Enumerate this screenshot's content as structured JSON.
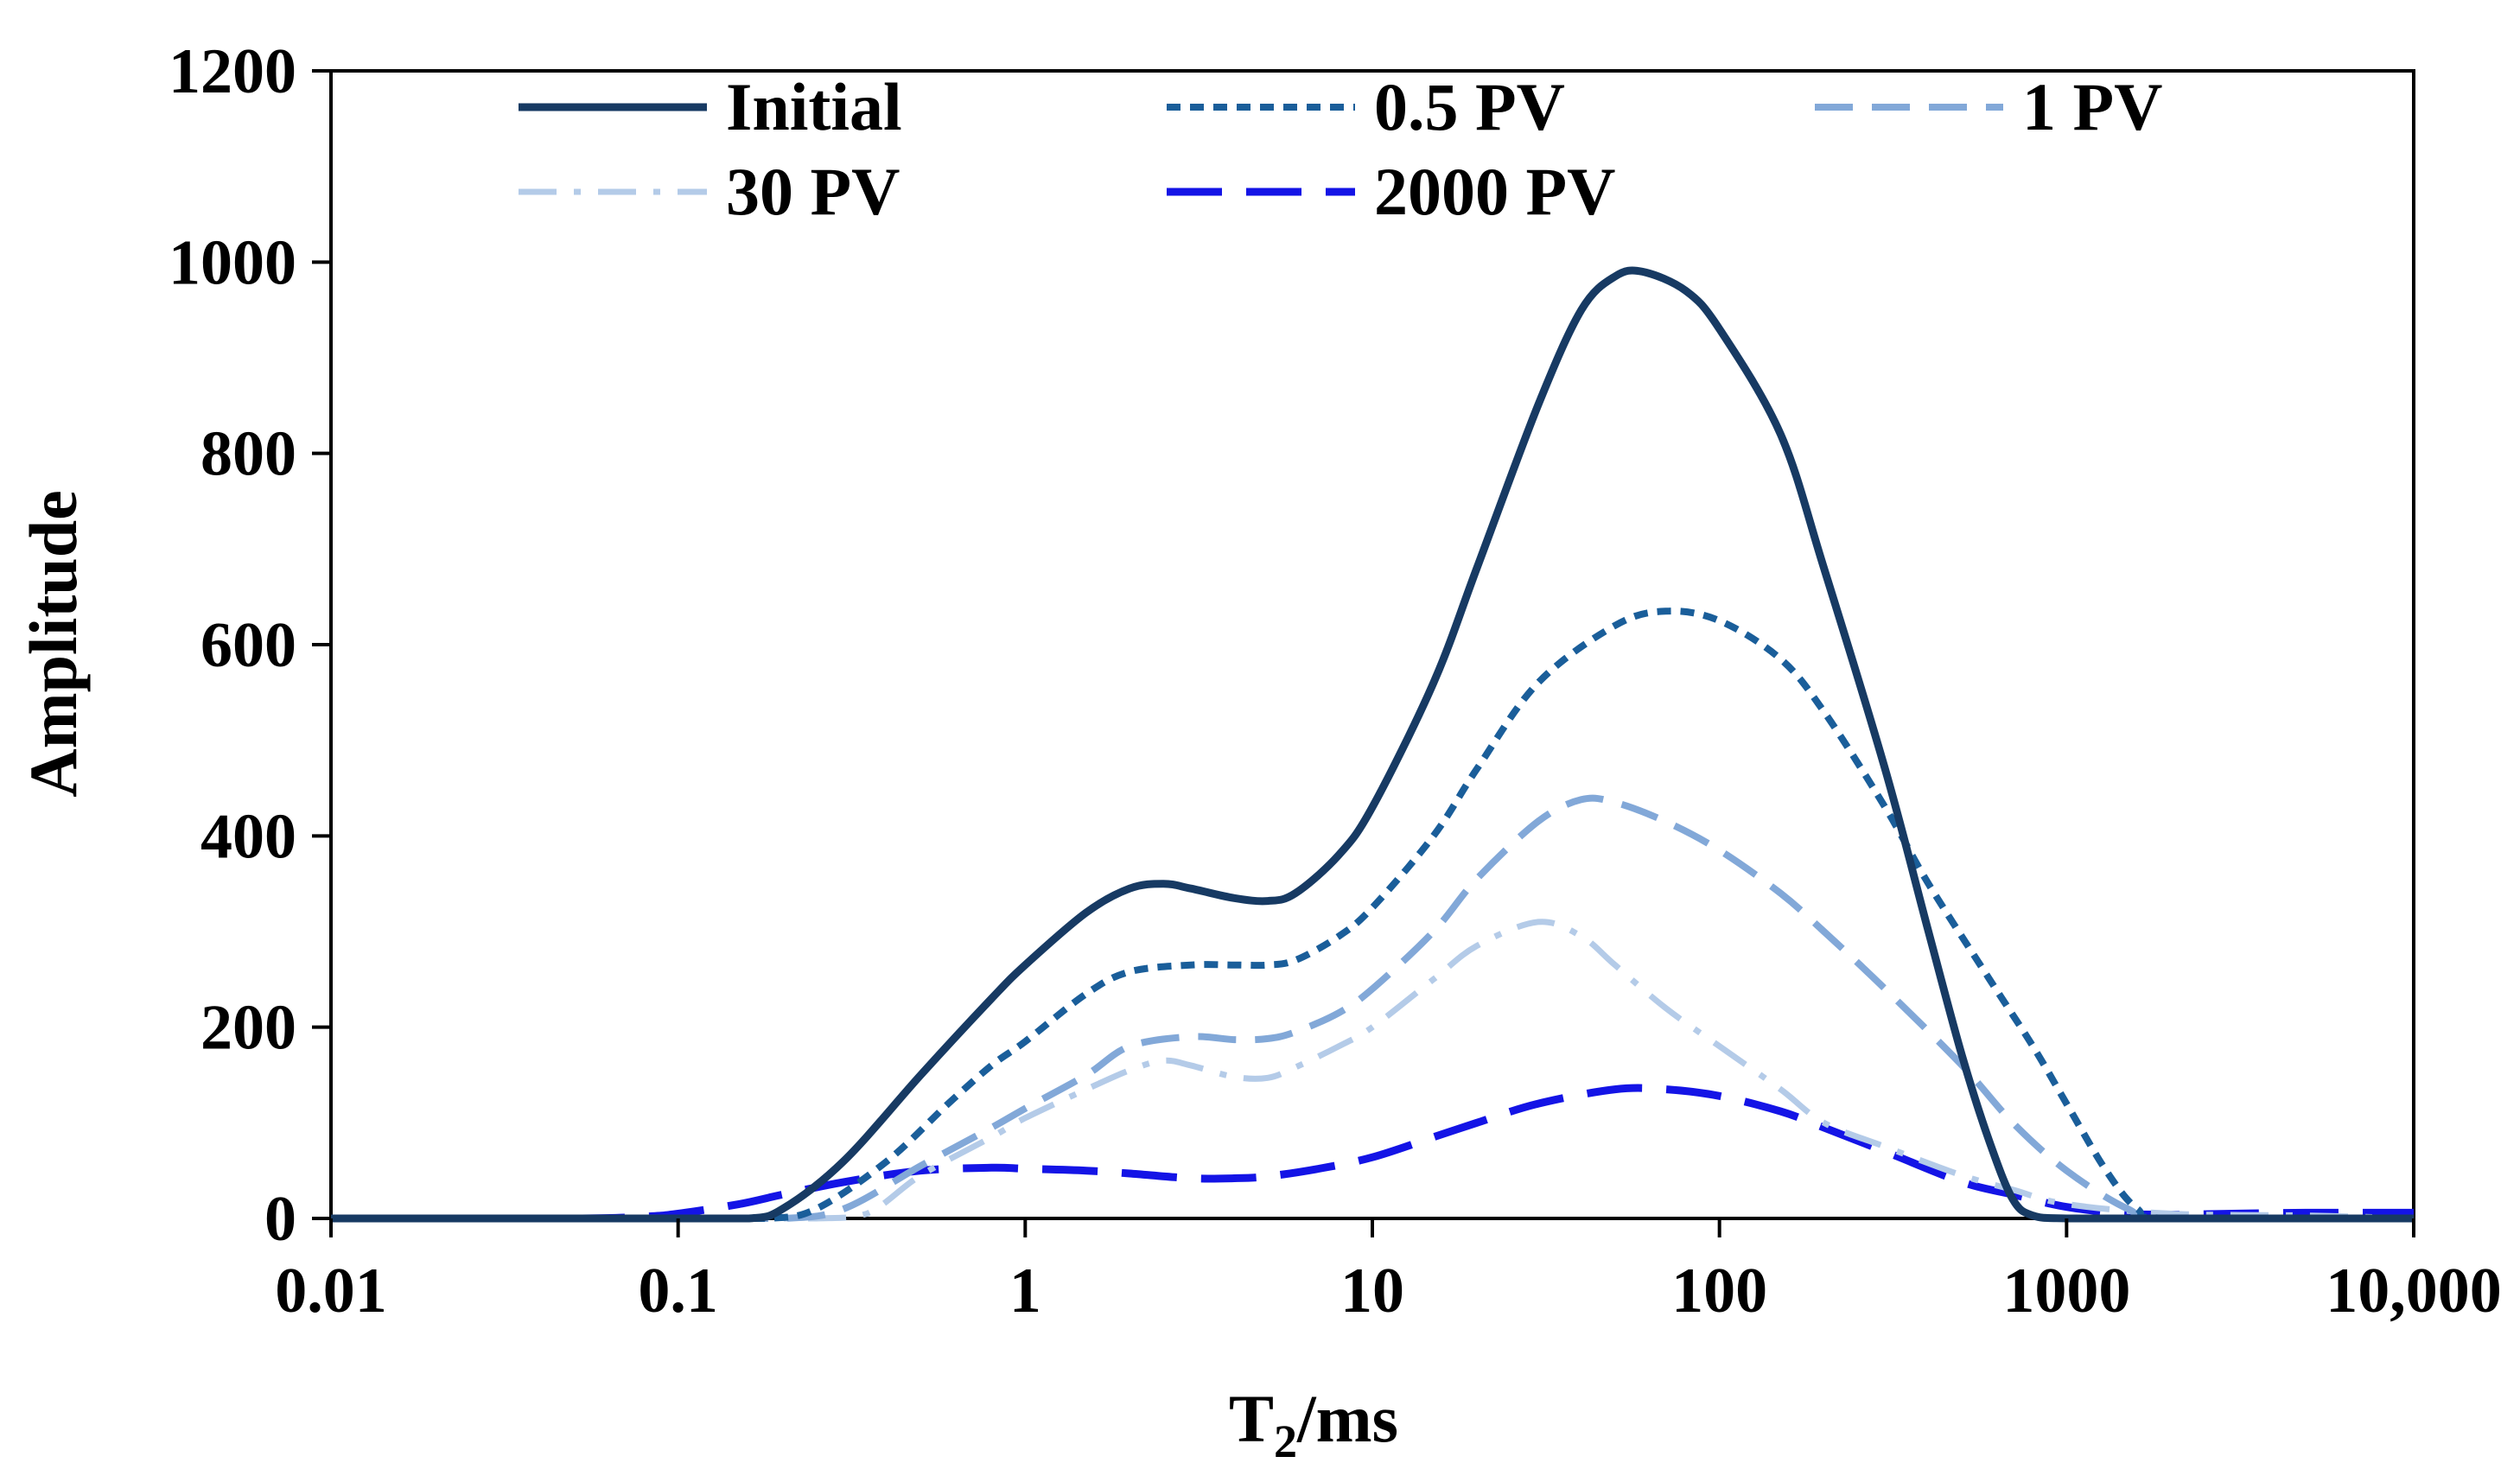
{
  "chart_data": {
    "type": "line",
    "title": "",
    "xlabel_main": "T",
    "xlabel_sub": "2",
    "xlabel_rest": "/ms",
    "ylabel": "Amplitude",
    "x_scale": "log",
    "xlim": [
      0.01,
      10000
    ],
    "ylim": [
      0,
      1200
    ],
    "x_ticks": [
      0.01,
      0.1,
      1,
      10,
      100,
      1000,
      10000
    ],
    "x_tick_labels": [
      "0.01",
      "0.1",
      "1",
      "10",
      "100",
      "1000",
      "10,000"
    ],
    "y_ticks": [
      0,
      200,
      400,
      600,
      800,
      1000,
      1200
    ],
    "y_tick_labels": [
      "0",
      "200",
      "400",
      "600",
      "800",
      "1000",
      "1200"
    ],
    "grid": false,
    "legend_position": "top",
    "series": [
      {
        "name": "Initial",
        "color": "#173a63",
        "dash": "solid",
        "points": [
          [
            0.01,
            0
          ],
          [
            0.05,
            0
          ],
          [
            0.1,
            0
          ],
          [
            0.16,
            0
          ],
          [
            0.2,
            10
          ],
          [
            0.3,
            60
          ],
          [
            0.5,
            150
          ],
          [
            0.8,
            230
          ],
          [
            1,
            265
          ],
          [
            1.5,
            320
          ],
          [
            2,
            345
          ],
          [
            2.5,
            350
          ],
          [
            3,
            345
          ],
          [
            4,
            335
          ],
          [
            5,
            332
          ],
          [
            6,
            340
          ],
          [
            8,
            380
          ],
          [
            10,
            430
          ],
          [
            15,
            560
          ],
          [
            20,
            680
          ],
          [
            30,
            850
          ],
          [
            40,
            950
          ],
          [
            50,
            985
          ],
          [
            60,
            990
          ],
          [
            80,
            970
          ],
          [
            100,
            930
          ],
          [
            150,
            820
          ],
          [
            200,
            680
          ],
          [
            300,
            470
          ],
          [
            400,
            300
          ],
          [
            500,
            170
          ],
          [
            600,
            80
          ],
          [
            700,
            20
          ],
          [
            800,
            3
          ],
          [
            1000,
            0
          ],
          [
            2000,
            0
          ],
          [
            10000,
            0
          ]
        ]
      },
      {
        "name": "0.5 PV",
        "color": "#1a5e9a",
        "dash": "short",
        "points": [
          [
            0.01,
            0
          ],
          [
            0.05,
            0
          ],
          [
            0.1,
            0
          ],
          [
            0.18,
            0
          ],
          [
            0.25,
            10
          ],
          [
            0.4,
            60
          ],
          [
            0.6,
            120
          ],
          [
            0.8,
            160
          ],
          [
            1,
            185
          ],
          [
            1.5,
            235
          ],
          [
            2,
            258
          ],
          [
            3,
            265
          ],
          [
            4,
            265
          ],
          [
            5,
            265
          ],
          [
            6,
            270
          ],
          [
            8,
            295
          ],
          [
            10,
            325
          ],
          [
            15,
            400
          ],
          [
            20,
            470
          ],
          [
            30,
            560
          ],
          [
            50,
            620
          ],
          [
            70,
            635
          ],
          [
            100,
            625
          ],
          [
            150,
            585
          ],
          [
            200,
            530
          ],
          [
            300,
            430
          ],
          [
            400,
            350
          ],
          [
            600,
            250
          ],
          [
            800,
            180
          ],
          [
            1000,
            120
          ],
          [
            1300,
            50
          ],
          [
            1600,
            10
          ],
          [
            2000,
            0
          ],
          [
            10000,
            0
          ]
        ]
      },
      {
        "name": "1 PV",
        "color": "#82a8d8",
        "dash": "long",
        "points": [
          [
            0.01,
            0
          ],
          [
            0.05,
            0
          ],
          [
            0.1,
            0
          ],
          [
            0.2,
            0
          ],
          [
            0.3,
            10
          ],
          [
            0.5,
            55
          ],
          [
            0.8,
            95
          ],
          [
            1,
            115
          ],
          [
            1.5,
            150
          ],
          [
            2,
            180
          ],
          [
            3,
            190
          ],
          [
            4,
            187
          ],
          [
            5,
            188
          ],
          [
            6,
            195
          ],
          [
            8,
            215
          ],
          [
            10,
            240
          ],
          [
            15,
            300
          ],
          [
            20,
            355
          ],
          [
            30,
            415
          ],
          [
            40,
            438
          ],
          [
            50,
            435
          ],
          [
            70,
            415
          ],
          [
            100,
            385
          ],
          [
            150,
            340
          ],
          [
            200,
            300
          ],
          [
            300,
            240
          ],
          [
            500,
            160
          ],
          [
            700,
            100
          ],
          [
            1000,
            50
          ],
          [
            1500,
            10
          ],
          [
            2000,
            0
          ],
          [
            10000,
            0
          ]
        ]
      },
      {
        "name": "30 PV",
        "color": "#b4cbe8",
        "dash": "dashdot",
        "points": [
          [
            0.01,
            0
          ],
          [
            0.05,
            0
          ],
          [
            0.1,
            0
          ],
          [
            0.25,
            0
          ],
          [
            0.35,
            5
          ],
          [
            0.5,
            45
          ],
          [
            0.8,
            85
          ],
          [
            1,
            105
          ],
          [
            1.5,
            135
          ],
          [
            2,
            155
          ],
          [
            2.5,
            165
          ],
          [
            3,
            160
          ],
          [
            4,
            148
          ],
          [
            5,
            147
          ],
          [
            6,
            158
          ],
          [
            8,
            180
          ],
          [
            10,
            200
          ],
          [
            15,
            250
          ],
          [
            20,
            285
          ],
          [
            30,
            310
          ],
          [
            40,
            295
          ],
          [
            50,
            265
          ],
          [
            70,
            220
          ],
          [
            100,
            180
          ],
          [
            150,
            135
          ],
          [
            200,
            100
          ],
          [
            300,
            75
          ],
          [
            500,
            45
          ],
          [
            700,
            30
          ],
          [
            1000,
            15
          ],
          [
            2000,
            5
          ],
          [
            5000,
            3
          ],
          [
            10000,
            0
          ]
        ]
      },
      {
        "name": "2000 PV",
        "color": "#1414e6",
        "dash": "xlong",
        "points": [
          [
            0.01,
            0
          ],
          [
            0.05,
            0
          ],
          [
            0.08,
            2
          ],
          [
            0.1,
            5
          ],
          [
            0.15,
            15
          ],
          [
            0.2,
            25
          ],
          [
            0.3,
            38
          ],
          [
            0.5,
            50
          ],
          [
            0.8,
            53
          ],
          [
            1,
            52
          ],
          [
            1.5,
            50
          ],
          [
            2,
            47
          ],
          [
            3,
            42
          ],
          [
            4,
            42
          ],
          [
            5,
            44
          ],
          [
            7,
            52
          ],
          [
            10,
            64
          ],
          [
            15,
            85
          ],
          [
            20,
            100
          ],
          [
            30,
            120
          ],
          [
            50,
            135
          ],
          [
            70,
            135
          ],
          [
            100,
            128
          ],
          [
            150,
            112
          ],
          [
            200,
            95
          ],
          [
            300,
            70
          ],
          [
            500,
            38
          ],
          [
            700,
            25
          ],
          [
            1000,
            12
          ],
          [
            1500,
            5
          ],
          [
            2000,
            4
          ],
          [
            3000,
            5
          ],
          [
            5000,
            6
          ],
          [
            10000,
            6
          ]
        ]
      }
    ]
  }
}
